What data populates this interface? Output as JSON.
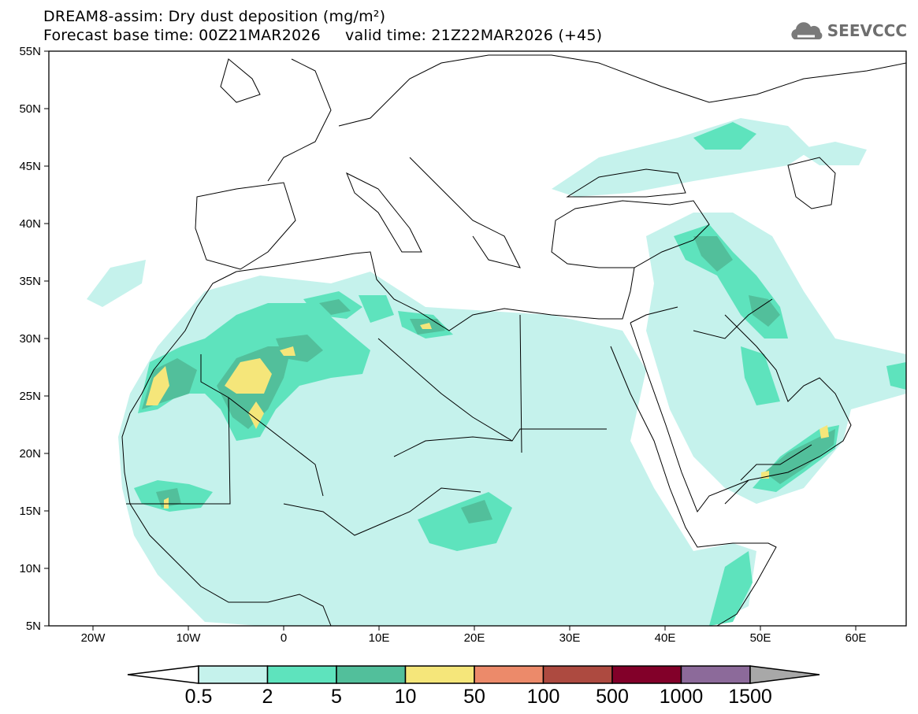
{
  "header": {
    "title": "DREAM8-assim: Dry dust deposition (mg/m²)",
    "subtitle": "Forecast base time: 00Z21MAR2026     valid time: 21Z22MAR2026 (+45)",
    "logo_text": "SEEVCCC",
    "logo_icon": "cloud-icon"
  },
  "map": {
    "lat_labels": [
      "55N",
      "50N",
      "45N",
      "40N",
      "35N",
      "30N",
      "25N",
      "20N",
      "15N",
      "10N",
      "5N"
    ],
    "lon_labels": [
      "20W",
      "10W",
      "0",
      "10E",
      "20E",
      "30E",
      "40E",
      "50E",
      "60E"
    ]
  },
  "colorbar": {
    "labels": [
      "0.5",
      "2",
      "5",
      "10",
      "50",
      "100",
      "500",
      "1000",
      "1500"
    ],
    "colors": [
      "#c5f2ec",
      "#5ee3bd",
      "#52bf9b",
      "#f5e67a",
      "#ec8a6a",
      "#ad4a40",
      "#820029",
      "#8c6a9a"
    ],
    "below_color": "#ffffff",
    "above_color": "#a8a8a8"
  }
}
